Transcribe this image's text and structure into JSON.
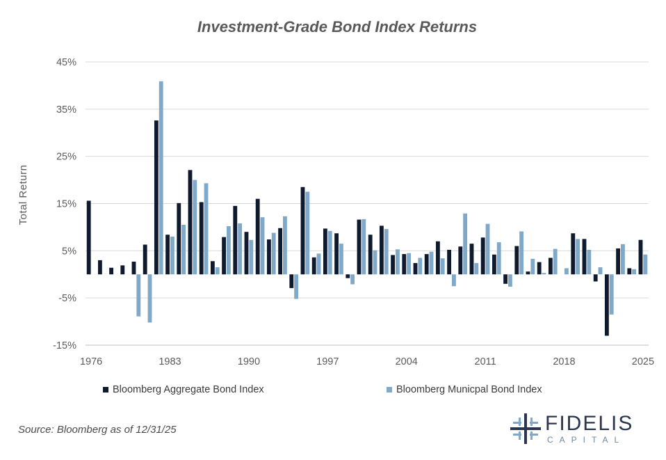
{
  "title": "Investment-Grade Bond Index Returns",
  "source": "Source: Bloomberg as of 12/31/25",
  "logo": {
    "name": "FIDELIS",
    "sub": "CAPITAL"
  },
  "legend": {
    "aggregate": "Bloomberg Aggregate Bond Index",
    "municipal": "Bloomberg Municpal Bond Index"
  },
  "colors": {
    "aggregate": "#0f1a2e",
    "municipal": "#7fa8c9",
    "grid": "#d9d9d9"
  },
  "chart_data": {
    "type": "bar",
    "title": "Investment-Grade Bond Index Returns",
    "ylabel": "Total Return",
    "xlabel": "",
    "ylim": [
      -15,
      45
    ],
    "yticks": [
      -15,
      -5,
      5,
      15,
      25,
      35,
      45
    ],
    "ytick_labels": [
      "-15%",
      "-5%",
      "5%",
      "15%",
      "25%",
      "35%",
      "45%"
    ],
    "xtick_labels": [
      "1976",
      "1983",
      "1990",
      "1997",
      "2004",
      "2011",
      "2018",
      "2025"
    ],
    "grid": true,
    "legend_position": "bottom",
    "categories": [
      "1976",
      "1977",
      "1978",
      "1979",
      "1980",
      "1981",
      "1982",
      "1983",
      "1984",
      "1985",
      "1986",
      "1987",
      "1988",
      "1989",
      "1990",
      "1991",
      "1992",
      "1993",
      "1994",
      "1995",
      "1996",
      "1997",
      "1998",
      "1999",
      "2000",
      "2001",
      "2002",
      "2003",
      "2004",
      "2005",
      "2006",
      "2007",
      "2008",
      "2009",
      "2010",
      "2011",
      "2012",
      "2013",
      "2014",
      "2015",
      "2016",
      "2017",
      "2018",
      "2019",
      "2020",
      "2021",
      "2022",
      "2023",
      "2024",
      "2025"
    ],
    "series": [
      {
        "name": "Bloomberg Aggregate Bond Index",
        "values": [
          15.6,
          3.0,
          1.4,
          1.9,
          2.7,
          6.3,
          32.6,
          8.4,
          15.1,
          22.1,
          15.3,
          2.8,
          7.9,
          14.5,
          9.0,
          16.0,
          7.4,
          9.8,
          -2.9,
          18.5,
          3.6,
          9.7,
          8.7,
          -0.8,
          11.6,
          8.4,
          10.3,
          4.1,
          4.3,
          2.4,
          4.3,
          7.0,
          5.2,
          5.9,
          6.5,
          7.8,
          4.2,
          -2.0,
          6.0,
          0.6,
          2.6,
          3.5,
          0.0,
          8.7,
          7.5,
          -1.5,
          -13.0,
          5.5,
          1.3,
          7.3
        ]
      },
      {
        "name": "Bloomberg Municpal Bond Index",
        "values": [
          0.0,
          0.0,
          0.0,
          0.0,
          -8.9,
          -10.2,
          40.9,
          8.0,
          10.5,
          20.0,
          19.3,
          1.5,
          10.2,
          10.8,
          7.3,
          12.1,
          8.8,
          12.3,
          -5.2,
          17.5,
          4.4,
          9.2,
          6.5,
          -2.1,
          11.7,
          5.1,
          9.6,
          5.3,
          4.5,
          3.5,
          4.8,
          3.4,
          -2.5,
          12.9,
          2.4,
          10.7,
          6.8,
          -2.6,
          9.1,
          3.3,
          0.3,
          5.4,
          1.3,
          7.5,
          5.2,
          1.5,
          -8.5,
          6.4,
          1.1,
          4.2
        ]
      }
    ]
  }
}
